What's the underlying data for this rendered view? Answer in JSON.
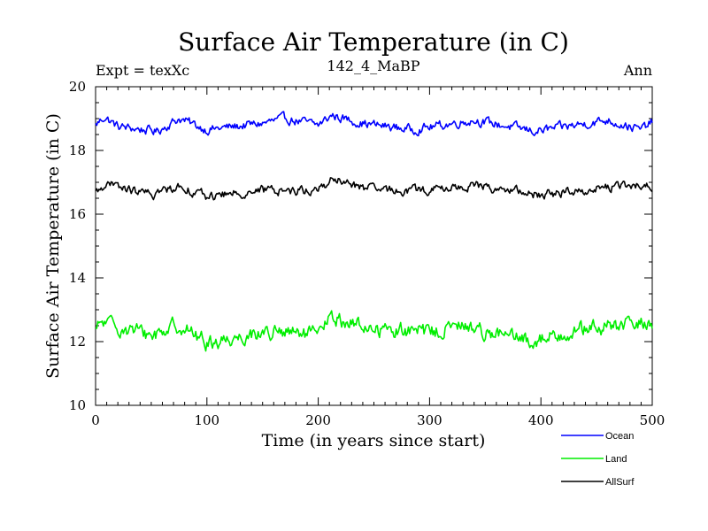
{
  "chart_data": {
    "type": "line",
    "title": "Surface Air Temperature (in C)",
    "subtitle_left": "Expt = texXc",
    "subtitle_center": "142_4_MaBP",
    "subtitle_right": "Ann",
    "xlabel": "Time (in years since start)",
    "ylabel": "Surface Air Temperature (in C)",
    "xlim": [
      0,
      500
    ],
    "ylim": [
      10,
      20
    ],
    "x_ticks": [
      "0",
      "100",
      "200",
      "300",
      "400",
      "500"
    ],
    "y_ticks": [
      "10",
      "12",
      "14",
      "16",
      "18",
      "20"
    ],
    "grid": false,
    "legend_position": "bottom-right",
    "series": [
      {
        "name": "Ocean",
        "color": "#0000ff",
        "mean": 18.8,
        "amplitude": 0.13,
        "anchors": [
          [
            0,
            18.8
          ],
          [
            8,
            19.05
          ],
          [
            20,
            18.75
          ],
          [
            55,
            18.6
          ],
          [
            75,
            19.0
          ],
          [
            100,
            18.65
          ],
          [
            150,
            18.85
          ],
          [
            170,
            19.0
          ],
          [
            200,
            18.8
          ],
          [
            212,
            19.1
          ],
          [
            240,
            18.85
          ],
          [
            285,
            18.65
          ],
          [
            340,
            18.95
          ],
          [
            395,
            18.6
          ],
          [
            460,
            18.95
          ],
          [
            490,
            18.65
          ],
          [
            500,
            18.9
          ]
        ]
      },
      {
        "name": "Land",
        "color": "#00ee00",
        "mean": 12.3,
        "amplitude": 0.22,
        "anchors": [
          [
            0,
            12.3
          ],
          [
            5,
            12.6
          ],
          [
            50,
            12.2
          ],
          [
            75,
            12.55
          ],
          [
            100,
            11.95
          ],
          [
            150,
            12.3
          ],
          [
            200,
            12.2
          ],
          [
            210,
            12.75
          ],
          [
            250,
            12.4
          ],
          [
            300,
            12.3
          ],
          [
            330,
            12.5
          ],
          [
            390,
            12.0
          ],
          [
            430,
            12.35
          ],
          [
            500,
            12.6
          ]
        ]
      },
      {
        "name": "AllSurf",
        "color": "#000000",
        "mean": 16.75,
        "amplitude": 0.13,
        "anchors": [
          [
            0,
            16.65
          ],
          [
            8,
            16.95
          ],
          [
            50,
            16.6
          ],
          [
            75,
            16.9
          ],
          [
            100,
            16.55
          ],
          [
            150,
            16.75
          ],
          [
            200,
            16.75
          ],
          [
            212,
            17.1
          ],
          [
            250,
            16.75
          ],
          [
            300,
            16.75
          ],
          [
            340,
            16.9
          ],
          [
            400,
            16.6
          ],
          [
            460,
            16.85
          ],
          [
            500,
            16.9
          ]
        ]
      }
    ]
  }
}
